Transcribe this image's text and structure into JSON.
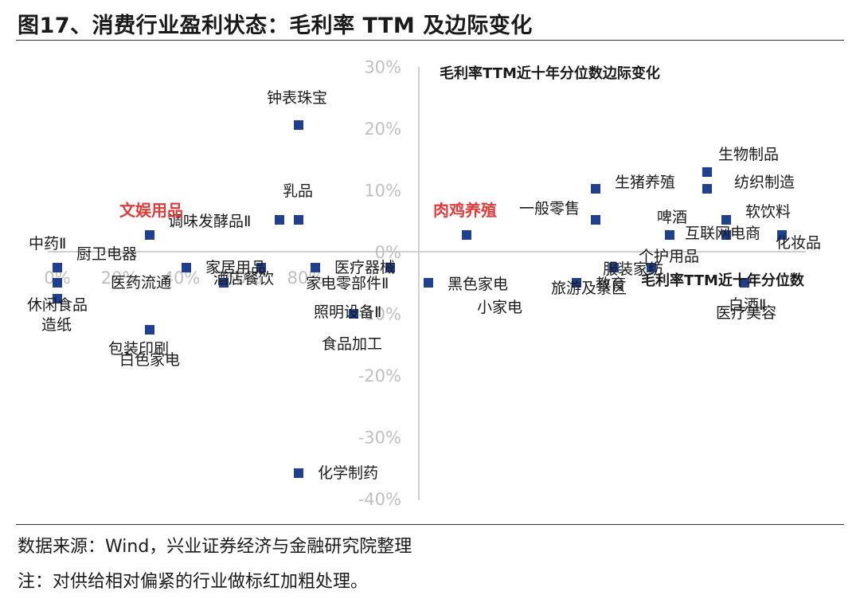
{
  "header": {
    "title": "图17、消费行业盈利状态：毛利率 TTM 及边际变化"
  },
  "footer": {
    "source": "数据来源：Wind，兴业证券经济与金融研究院整理",
    "note": "注：对供给相对偏紧的行业做标红加粗处理。"
  },
  "chart_data": {
    "type": "scatter",
    "xlabel": "毛利率TTM近十年分位数",
    "ylabel": "毛利率TTM近十年分位数边际变化",
    "xlim": [
      0,
      100
    ],
    "ylim": [
      -40,
      30
    ],
    "x_ticks": [
      0,
      20,
      40,
      60,
      80
    ],
    "y_ticks": [
      30,
      20,
      10,
      0,
      -10,
      -20,
      -30,
      -40
    ],
    "x_tick_labels": [
      "0%",
      "20%",
      "40%",
      "60%",
      "80%"
    ],
    "y_tick_labels": [
      "30%",
      "20%",
      "10%",
      "0%",
      "-10%",
      "-20%",
      "-30%",
      "-40%"
    ],
    "marker_color": "#1f3f8f",
    "highlight_color": "#e03a3a",
    "points": [
      {
        "name": "钟表珠宝",
        "x": 40,
        "y": 20,
        "highlight": false
      },
      {
        "name": "生物制品",
        "x": 96,
        "y": 13,
        "highlight": false
      },
      {
        "name": "生猪养殖",
        "x": 80,
        "y": 10,
        "highlight": false
      },
      {
        "name": "纺织制造",
        "x": 96,
        "y": 10,
        "highlight": false
      },
      {
        "name": "乳品",
        "x": 40,
        "y": 5,
        "highlight": false
      },
      {
        "name": "调味发酵品Ⅱ",
        "x": 37.5,
        "y": 5,
        "highlight": false
      },
      {
        "name": "一般零售",
        "x": 80,
        "y": 5,
        "highlight": false
      },
      {
        "name": "啤酒",
        "x": 90,
        "y": 2.5,
        "highlight": false
      },
      {
        "name": "软饮料",
        "x": 98.5,
        "y": 5,
        "highlight": false
      },
      {
        "name": "文娱用品",
        "x": 17.5,
        "y": 2.5,
        "highlight": true
      },
      {
        "name": "肉鸡养殖",
        "x": 62.5,
        "y": 2.5,
        "highlight": true
      },
      {
        "name": "服装家纺",
        "x": 88,
        "y": -2.5,
        "highlight": false
      },
      {
        "name": "互联网电商",
        "x": 106,
        "y": 2.5,
        "highlight": false
      },
      {
        "name": "化妆品",
        "x": 106,
        "y": 2.5,
        "highlight": false
      },
      {
        "name": "中药Ⅱ",
        "x": 0,
        "y": -2.5,
        "highlight": false
      },
      {
        "name": "厨卫电器",
        "x": 0,
        "y": -5,
        "highlight": false
      },
      {
        "name": "家居用品",
        "x": 23,
        "y": -2.5,
        "highlight": false
      },
      {
        "name": "医疗器械",
        "x": 35,
        "y": -2.5,
        "highlight": false
      },
      {
        "name": "个护用品",
        "x": 83,
        "y": -2.5,
        "highlight": false
      },
      {
        "name": "白酒Ⅱ",
        "x": 101,
        "y": -5,
        "highlight": false
      },
      {
        "name": "医药流通",
        "x": 29,
        "y": -5,
        "highlight": false
      },
      {
        "name": "酒店餐饮",
        "x": 42.5,
        "y": -2.5,
        "highlight": false
      },
      {
        "name": "家电零部件Ⅱ",
        "x": 52,
        "y": -2.5,
        "highlight": false
      },
      {
        "name": "黑色家电",
        "x": 57.5,
        "y": -5,
        "highlight": false
      },
      {
        "name": "教育",
        "x": 77,
        "y": -5,
        "highlight": false
      },
      {
        "name": "休闲食品",
        "x": 0,
        "y": -7.5,
        "highlight": false
      },
      {
        "name": "包装印刷",
        "x": 13,
        "y": -10,
        "highlight": false
      },
      {
        "name": "照明设备Ⅱ",
        "x": 47.5,
        "y": -10,
        "highlight": false
      },
      {
        "name": "旅游及景区",
        "x": 100,
        "y": -5,
        "highlight": false
      },
      {
        "name": "医疗美容",
        "x": 100,
        "y": -5,
        "highlight": false
      },
      {
        "name": "小家电",
        "x": 100,
        "y": -5,
        "highlight": false
      },
      {
        "name": "造纸",
        "x": 12.5,
        "y": -12.5,
        "highlight": false
      },
      {
        "name": "食品加工",
        "x": 47.5,
        "y": -10,
        "highlight": false
      },
      {
        "name": "白色家电",
        "x": 12.5,
        "y": -12.5,
        "highlight": false
      },
      {
        "name": "化学制药",
        "x": 40,
        "y": -36,
        "highlight": false
      }
    ]
  }
}
